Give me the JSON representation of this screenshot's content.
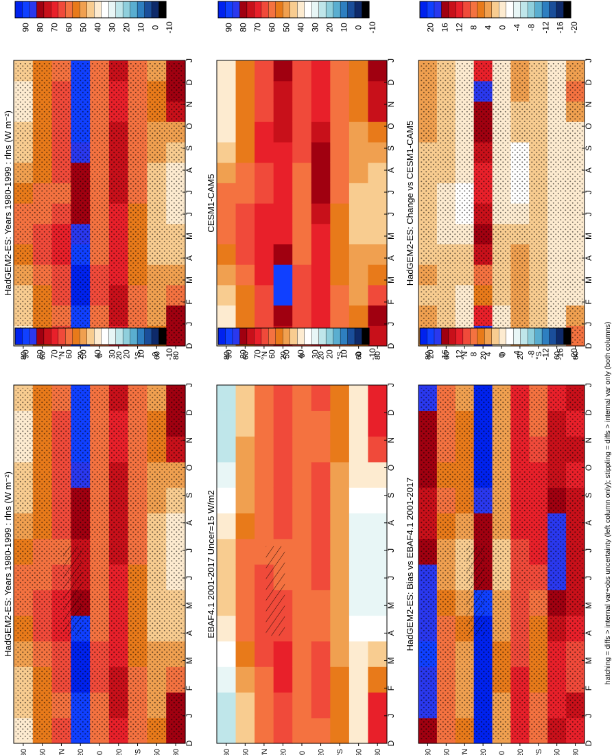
{
  "footnote": "hatching = diffs > internal var+obs uncertainty (left column only); stippling = diffs > internal var only (both columns)",
  "months": [
    "D",
    "J",
    "F",
    "M",
    "A",
    "M",
    "J",
    "J",
    "A",
    "S",
    "O",
    "N",
    "D",
    "J"
  ],
  "lat_ticks": [
    "80",
    "60",
    "°N",
    "20",
    "0",
    "20",
    "°S",
    "60",
    "80"
  ],
  "colorbars": {
    "abs": {
      "labels": [
        "90",
        "80",
        "70",
        "60",
        "50",
        "40",
        "30",
        "20",
        "10",
        "0",
        "-10"
      ],
      "colors": [
        "#0022ee",
        "#1040ff",
        "#2a38ee",
        "#a00010",
        "#c8101a",
        "#e8202a",
        "#f04a3a",
        "#f47240",
        "#e87a1a",
        "#f0a050",
        "#f8cc90",
        "#fdebd0",
        "#ffffff",
        "#e8f6f6",
        "#bfe6ea",
        "#8fcfdc",
        "#5aaed0",
        "#2e7fc0",
        "#1a4e9a",
        "#0e2a6a",
        "#000000"
      ]
    },
    "diff": {
      "labels": [
        "20",
        "16",
        "12",
        "8",
        "4",
        "0",
        "-4",
        "-8",
        "-12",
        "-16",
        "-20"
      ],
      "colors": [
        "#0022ee",
        "#1040ff",
        "#2a38ee",
        "#a00010",
        "#c8101a",
        "#e8202a",
        "#f04a3a",
        "#f47240",
        "#e87a1a",
        "#f0a050",
        "#f8cc90",
        "#fdebd0",
        "#ffffff",
        "#e8f6f6",
        "#bfe6ea",
        "#8fcfdc",
        "#5aaed0",
        "#2e7fc0",
        "#1a4e9a",
        "#0e2a6a",
        "#000000"
      ]
    }
  },
  "chart_data": [
    {
      "type": "heatmap",
      "title": "HadGEM2-ES: Years 1980-1999 : rlns (W m⁻²)",
      "xlabel": "month",
      "ylabel": "latitude",
      "colorbar": "abs",
      "hatching": true,
      "stippling": true,
      "x": [
        "D",
        "J",
        "F",
        "M",
        "A",
        "M",
        "J",
        "J",
        "A",
        "S",
        "O",
        "N",
        "D",
        "J"
      ],
      "y": [
        "80N",
        "60N",
        "40N",
        "20N",
        "0",
        "20S",
        "40S",
        "60S",
        "80S"
      ],
      "values": [
        [
          40,
          42,
          45,
          50,
          55,
          58,
          60,
          55,
          50,
          45,
          42,
          40,
          40,
          42
        ],
        [
          52,
          52,
          55,
          58,
          62,
          62,
          60,
          58,
          55,
          55,
          52,
          52,
          52,
          52
        ],
        [
          62,
          60,
          62,
          65,
          68,
          66,
          62,
          60,
          62,
          64,
          64,
          63,
          62,
          60
        ],
        [
          88,
          90,
          92,
          92,
          88,
          80,
          75,
          74,
          76,
          80,
          85,
          88,
          88,
          90
        ],
        [
          60,
          60,
          62,
          62,
          60,
          58,
          56,
          56,
          58,
          60,
          60,
          60,
          60,
          60
        ],
        [
          70,
          72,
          72,
          70,
          68,
          68,
          70,
          72,
          74,
          72,
          72,
          70,
          70,
          72
        ],
        [
          58,
          58,
          56,
          54,
          52,
          52,
          54,
          56,
          56,
          58,
          60,
          60,
          58,
          58
        ],
        [
          52,
          50,
          48,
          46,
          44,
          42,
          42,
          42,
          44,
          46,
          48,
          52,
          52,
          50
        ],
        [
          80,
          78,
          60,
          50,
          44,
          42,
          40,
          40,
          40,
          44,
          50,
          75,
          80,
          78
        ]
      ]
    },
    {
      "type": "heatmap",
      "title": "HadGEM2-ES: Years 1980-1999 : rlns (W m⁻²)",
      "xlabel": "month",
      "ylabel": "latitude",
      "colorbar": "abs",
      "stippling": true,
      "x": [
        "D",
        "J",
        "F",
        "M",
        "A",
        "M",
        "J",
        "J",
        "A",
        "S",
        "O",
        "N",
        "D",
        "J"
      ],
      "y": [
        "80N",
        "60N",
        "40N",
        "20N",
        "0",
        "20S",
        "40S",
        "60S",
        "80S"
      ],
      "values": [
        [
          40,
          42,
          45,
          50,
          55,
          58,
          60,
          55,
          50,
          45,
          42,
          40,
          40,
          42
        ],
        [
          52,
          52,
          55,
          58,
          62,
          62,
          60,
          58,
          55,
          55,
          52,
          52,
          52,
          52
        ],
        [
          62,
          60,
          62,
          65,
          68,
          66,
          62,
          60,
          62,
          64,
          64,
          63,
          62,
          60
        ],
        [
          88,
          90,
          92,
          92,
          88,
          82,
          78,
          76,
          78,
          82,
          86,
          88,
          88,
          90
        ],
        [
          60,
          60,
          62,
          62,
          60,
          58,
          56,
          56,
          58,
          60,
          60,
          60,
          60,
          60
        ],
        [
          70,
          72,
          72,
          70,
          68,
          68,
          70,
          72,
          74,
          72,
          72,
          70,
          70,
          72
        ],
        [
          58,
          58,
          56,
          54,
          52,
          52,
          54,
          56,
          56,
          58,
          60,
          60,
          58,
          58
        ],
        [
          52,
          50,
          48,
          46,
          44,
          42,
          42,
          42,
          44,
          46,
          48,
          52,
          52,
          50
        ],
        [
          80,
          78,
          60,
          50,
          44,
          42,
          40,
          40,
          40,
          44,
          50,
          75,
          80,
          78
        ]
      ]
    },
    {
      "type": "heatmap",
      "title": "EBAF4.1 2001-2017 Uncer=15 W/m2",
      "xlabel": "month",
      "ylabel": "latitude",
      "colorbar": "abs",
      "hatching": true,
      "x": [
        "D",
        "J",
        "F",
        "M",
        "A",
        "M",
        "J",
        "J",
        "A",
        "S",
        "O",
        "N",
        "D",
        "J"
      ],
      "y": [
        "80N",
        "60N",
        "40N",
        "20N",
        "0",
        "20S",
        "40S",
        "60S",
        "80S"
      ],
      "values": [
        [
          25,
          25,
          28,
          32,
          38,
          42,
          44,
          42,
          38,
          32,
          28,
          25,
          25,
          25
        ],
        [
          45,
          45,
          48,
          52,
          56,
          58,
          58,
          56,
          52,
          50,
          48,
          46,
          45,
          45
        ],
        [
          58,
          58,
          60,
          62,
          64,
          64,
          62,
          60,
          60,
          60,
          60,
          58,
          58,
          58
        ],
        [
          64,
          64,
          66,
          66,
          64,
          62,
          60,
          60,
          62,
          64,
          64,
          64,
          64,
          64
        ],
        [
          58,
          58,
          58,
          58,
          58,
          56,
          56,
          56,
          56,
          58,
          58,
          58,
          58,
          58
        ],
        [
          60,
          62,
          62,
          62,
          60,
          60,
          62,
          64,
          64,
          62,
          62,
          60,
          60,
          62
        ],
        [
          52,
          52,
          52,
          50,
          48,
          46,
          46,
          46,
          46,
          48,
          50,
          52,
          52,
          52
        ],
        [
          40,
          40,
          38,
          36,
          32,
          28,
          26,
          26,
          28,
          32,
          36,
          40,
          40,
          40
        ],
        [
          70,
          66,
          52,
          42,
          34,
          30,
          28,
          28,
          28,
          32,
          40,
          62,
          70,
          66
        ]
      ]
    },
    {
      "type": "heatmap",
      "title": "CESM1-CAM5",
      "xlabel": "month",
      "ylabel": "latitude",
      "colorbar": "abs",
      "x": [
        "D",
        "J",
        "F",
        "M",
        "A",
        "M",
        "J",
        "J",
        "A",
        "S",
        "O",
        "N",
        "D",
        "J"
      ],
      "y": [
        "80N",
        "60N",
        "40N",
        "20N",
        "0",
        "20S",
        "40S",
        "60S",
        "80S"
      ],
      "values": [
        [
          38,
          40,
          44,
          48,
          54,
          58,
          60,
          56,
          50,
          44,
          40,
          38,
          38,
          40
        ],
        [
          52,
          52,
          54,
          58,
          62,
          64,
          62,
          60,
          56,
          54,
          52,
          52,
          52,
          52
        ],
        [
          64,
          62,
          64,
          66,
          68,
          68,
          66,
          64,
          64,
          66,
          66,
          65,
          64,
          62
        ],
        [
          72,
          80,
          88,
          86,
          76,
          68,
          66,
          66,
          68,
          70,
          72,
          74,
          72,
          80
        ],
        [
          62,
          62,
          62,
          62,
          60,
          58,
          58,
          58,
          60,
          62,
          62,
          62,
          62,
          62
        ],
        [
          68,
          70,
          70,
          68,
          66,
          68,
          72,
          76,
          78,
          76,
          72,
          70,
          68,
          70
        ],
        [
          58,
          58,
          56,
          54,
          52,
          52,
          54,
          56,
          56,
          58,
          60,
          60,
          58,
          58
        ],
        [
          54,
          52,
          50,
          48,
          46,
          44,
          44,
          44,
          46,
          48,
          50,
          54,
          54,
          52
        ],
        [
          74,
          76,
          62,
          52,
          46,
          44,
          42,
          42,
          42,
          46,
          52,
          72,
          74,
          76
        ]
      ]
    },
    {
      "type": "heatmap",
      "title": "HadGEM2-ES: Bias vs EBAF4.1 2001-2017",
      "xlabel": "month",
      "ylabel": "latitude",
      "colorbar": "diff",
      "hatching": true,
      "stippling": true,
      "x": [
        "D",
        "J",
        "F",
        "M",
        "A",
        "M",
        "J",
        "J",
        "A",
        "S",
        "O",
        "N",
        "D",
        "J"
      ],
      "y": [
        "80N",
        "60N",
        "40N",
        "20N",
        "0",
        "20S",
        "40S",
        "60S",
        "80S"
      ],
      "values": [
        [
          14,
          16,
          16,
          18,
          16,
          16,
          16,
          14,
          12,
          12,
          14,
          14,
          14,
          16
        ],
        [
          6,
          6,
          6,
          6,
          6,
          4,
          2,
          2,
          4,
          6,
          4,
          6,
          6,
          6
        ],
        [
          4,
          2,
          2,
          2,
          4,
          2,
          0,
          0,
          2,
          4,
          4,
          4,
          4,
          2
        ],
        [
          24,
          26,
          26,
          26,
          24,
          18,
          15,
          14,
          14,
          16,
          20,
          24,
          24,
          26
        ],
        [
          2,
          2,
          4,
          4,
          2,
          2,
          0,
          0,
          2,
          2,
          2,
          2,
          2,
          2
        ],
        [
          10,
          10,
          10,
          8,
          8,
          8,
          8,
          8,
          10,
          10,
          10,
          10,
          10,
          10
        ],
        [
          6,
          6,
          4,
          4,
          4,
          6,
          8,
          10,
          10,
          10,
          10,
          8,
          6,
          6
        ],
        [
          12,
          10,
          10,
          10,
          12,
          14,
          16,
          16,
          16,
          14,
          12,
          12,
          12,
          10
        ],
        [
          10,
          12,
          8,
          8,
          10,
          12,
          12,
          12,
          12,
          12,
          10,
          13,
          10,
          12
        ]
      ]
    },
    {
      "type": "heatmap",
      "title": "HadGEM2-ES: Change vs CESM1-CAM5",
      "xlabel": "month",
      "ylabel": "latitude",
      "colorbar": "diff",
      "stippling": true,
      "x": [
        "D",
        "J",
        "F",
        "M",
        "A",
        "M",
        "J",
        "J",
        "A",
        "S",
        "O",
        "N",
        "D",
        "J"
      ],
      "y": [
        "80N",
        "60N",
        "40N",
        "20N",
        "0",
        "20S",
        "40S",
        "60S",
        "80S"
      ],
      "values": [
        [
          2,
          2,
          1,
          2,
          1,
          0,
          0,
          -1,
          0,
          1,
          2,
          2,
          2,
          2
        ],
        [
          0,
          0,
          1,
          0,
          0,
          -2,
          -2,
          -2,
          -1,
          1,
          0,
          0,
          0,
          0
        ],
        [
          -2,
          -2,
          -2,
          -1,
          0,
          -2,
          -4,
          -4,
          -2,
          -2,
          -2,
          -2,
          -2,
          -2
        ],
        [
          16,
          10,
          4,
          6,
          12,
          14,
          12,
          10,
          10,
          12,
          14,
          14,
          16,
          10
        ],
        [
          -2,
          -2,
          0,
          0,
          0,
          0,
          -2,
          -2,
          -2,
          -2,
          -2,
          -2,
          -2,
          -2
        ],
        [
          2,
          2,
          2,
          2,
          2,
          0,
          -2,
          -4,
          -4,
          -4,
          0,
          0,
          2,
          2
        ],
        [
          0,
          0,
          0,
          0,
          0,
          0,
          0,
          0,
          0,
          0,
          0,
          0,
          0,
          0
        ],
        [
          -2,
          -2,
          -2,
          -2,
          -2,
          -2,
          -2,
          -2,
          -2,
          -2,
          -2,
          -2,
          -2,
          -2
        ],
        [
          6,
          2,
          -2,
          -2,
          -2,
          -2,
          -2,
          -2,
          -2,
          -2,
          -2,
          3,
          6,
          2
        ]
      ]
    }
  ]
}
